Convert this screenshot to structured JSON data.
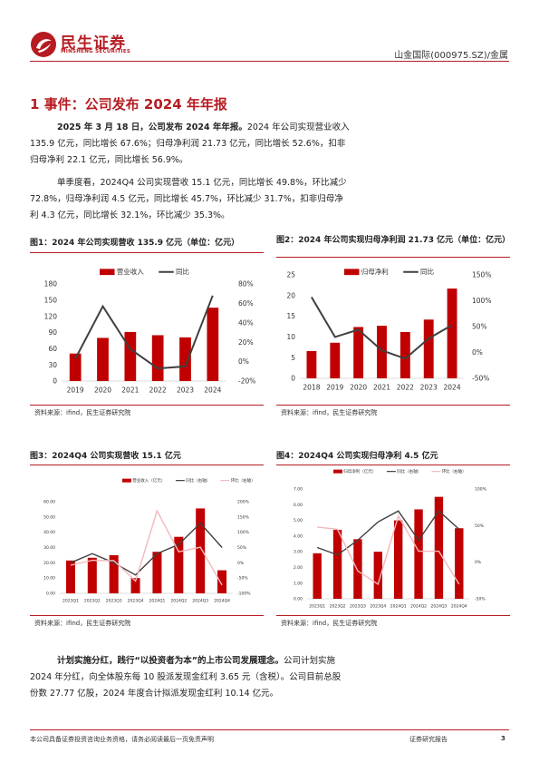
{
  "header": {
    "brand_cn": "民生证券",
    "brand_en": "MINSHENG SECURITIES",
    "stock_label": "山金国际(000975.SZ)/金属"
  },
  "section": {
    "title": "1 事件：公司发布 2024 年年报"
  },
  "paragraphs": {
    "p1_bold": "2025 年 3 月 18 日，公司发布 2024 年年报。",
    "p1_rest": "2024 年公司实现营业收入",
    "p1_line2": "135.9 亿元，同比增长 67.6%；归母净利润 21.73 亿元，同比增长 52.6%，扣非",
    "p1_line3": "归母净利 22.1 亿元，同比增长 56.9%。",
    "p2_line1": "单季度看，2024Q4 公司实现营收 15.1 亿元，同比增长 49.8%，环比减少",
    "p2_line2": "72.8%，归母净利润 4.5 亿元，同比增长 45.7%，环比减少 31.7%，扣非归母净",
    "p2_line3": "利 4.3 亿元，同比增长 32.1%，环比减少 35.3%。",
    "p3_bold": "计划实施分红，践行“以投资者为本”的上市公司发展理念。",
    "p3_rest": "公司计划实施",
    "p3_line2": "2024 年分红，向全体股东每 10 股派发现金红利 3.65 元（含税）。公司目前总股",
    "p3_line3": "份数 27.77 亿股，2024 年度合计拟派发现金红利 10.14 亿元。"
  },
  "figures": {
    "fig1_title": "图1：2024 年公司实现营收 135.9 亿元（单位：亿元）",
    "fig2_title": "图2：2024 年公司实现归母净利润 21.73 亿元（单位：亿元）",
    "fig3_title": "图3：2024Q4 公司实现营收 15.1 亿元",
    "fig4_title": "图4：2024Q4 公司实现归母净利 4.5 亿元",
    "source": "资料来源：ifind，民生证券研究院"
  },
  "footer": {
    "disclaimer": "本公司具备证券投资咨询业务资格，请务必阅读最后一页免责声明",
    "report_type": "证券研究报告",
    "page_number": "3"
  },
  "colors": {
    "brand_red": "#b61c22",
    "bar_red": "#c00000",
    "line_grey": "#404040",
    "line_pink": "#f2b8bc"
  },
  "chart_data": [
    {
      "id": "fig1",
      "type": "bar",
      "categories": [
        "2019",
        "2020",
        "2021",
        "2022",
        "2023",
        "2024"
      ],
      "series": [
        {
          "name": "营业收入",
          "kind": "bar",
          "axis": "left",
          "values": [
            51,
            80,
            91,
            85,
            81,
            136
          ]
        },
        {
          "name": "同比",
          "kind": "line",
          "axis": "right",
          "values": [
            3,
            57,
            13,
            -7,
            -5,
            68
          ]
        }
      ],
      "left_ticks": [
        "180",
        "150",
        "120",
        "90",
        "60",
        "30",
        "0"
      ],
      "right_ticks": [
        "80%",
        "60%",
        "40%",
        "20%",
        "0%",
        "-20%"
      ],
      "ylim": [
        0,
        180
      ],
      "y2lim": [
        -20,
        80
      ],
      "legend": "top"
    },
    {
      "id": "fig2",
      "type": "bar",
      "categories": [
        "2018",
        "2019",
        "2020",
        "2021",
        "2022",
        "2023",
        "2024"
      ],
      "series": [
        {
          "name": "归母净利",
          "kind": "bar",
          "axis": "left",
          "values": [
            6.6,
            8.6,
            12.4,
            12.7,
            11.2,
            14.2,
            21.7
          ]
        },
        {
          "name": "同比",
          "kind": "line",
          "axis": "right",
          "values": [
            107,
            30,
            44,
            4,
            -12,
            27,
            53
          ]
        }
      ],
      "left_ticks": [
        "25",
        "20",
        "15",
        "10",
        "5",
        "0"
      ],
      "right_ticks": [
        "150%",
        "100%",
        "50%",
        "0%",
        "-50%"
      ],
      "ylim": [
        0,
        25
      ],
      "y2lim": [
        -50,
        150
      ],
      "legend": "top"
    },
    {
      "id": "fig3",
      "type": "bar",
      "categories": [
        "2023Q1",
        "2023Q2",
        "2023Q3",
        "2023Q4",
        "2024Q1",
        "2024Q2",
        "2024Q3",
        "2024Q4"
      ],
      "series": [
        {
          "name": "营业收入（亿元）",
          "kind": "bar",
          "axis": "left",
          "values": [
            21.5,
            23.3,
            25,
            10,
            27.2,
            37,
            55.6,
            15.1
          ]
        },
        {
          "name": "同比（右轴）",
          "kind": "line",
          "axis": "right",
          "values": [
            0,
            30,
            0,
            -40,
            30,
            60,
            130,
            50
          ]
        },
        {
          "name": "环比（右轴）",
          "kind": "line",
          "axis": "right",
          "values": [
            -8,
            8,
            7,
            -60,
            170,
            36,
            51,
            -73
          ]
        }
      ],
      "left_ticks": [
        "60.00",
        "50.00",
        "40.00",
        "30.00",
        "20.00",
        "10.00",
        "0.00"
      ],
      "right_ticks": [
        "200%",
        "150%",
        "100%",
        "50%",
        "0%",
        "-50%",
        "-100%"
      ],
      "ylim": [
        0,
        60
      ],
      "y2lim": [
        -100,
        200
      ],
      "legend": "top"
    },
    {
      "id": "fig4",
      "type": "bar",
      "categories": [
        "2023Q1",
        "2023Q2",
        "2023Q3",
        "2023Q4",
        "2024Q1",
        "2024Q2",
        "2024Q3",
        "2024Q4"
      ],
      "series": [
        {
          "name": "归母净利（亿元）",
          "kind": "bar",
          "axis": "left",
          "values": [
            2.9,
            4.4,
            3.8,
            3.0,
            5.0,
            5.7,
            6.5,
            4.5
          ]
        },
        {
          "name": "同比（右轴）",
          "kind": "line",
          "axis": "right",
          "values": [
            20,
            10,
            30,
            55,
            70,
            30,
            70,
            45
          ]
        },
        {
          "name": "环比（右轴）",
          "kind": "line",
          "axis": "right",
          "values": [
            48,
            45,
            -12,
            -30,
            63,
            15,
            15,
            -30
          ]
        }
      ],
      "left_ticks": [
        "7.00",
        "6.00",
        "5.00",
        "4.00",
        "3.00",
        "2.00",
        "1.00",
        "0.00"
      ],
      "right_ticks": [
        "100%",
        "50%",
        "0%",
        "-50%"
      ],
      "ylim": [
        0,
        7
      ],
      "y2lim": [
        -50,
        100
      ],
      "legend": "top"
    }
  ]
}
